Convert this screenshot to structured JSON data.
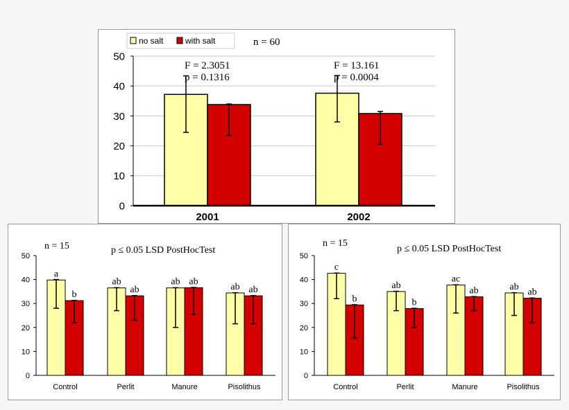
{
  "colors": {
    "no_salt": "#ffffa8",
    "with_salt": "#d40000",
    "axis": "#000000",
    "panel_bg": "#ffffff",
    "page_bg": "#f6f6f6"
  },
  "legend": {
    "no_salt": "no salt",
    "with_salt": "with salt"
  },
  "chart_data": [
    {
      "type": "bar",
      "title": "",
      "n_label": "n = 60",
      "categories": [
        "2001",
        "2002"
      ],
      "series": [
        {
          "name": "no salt",
          "values": [
            37.2,
            37.6
          ],
          "err_low": [
            24.5,
            28.0
          ],
          "err_high": [
            43.4,
            43.5
          ]
        },
        {
          "name": "with salt",
          "values": [
            33.8,
            30.8
          ],
          "err_low": [
            23.5,
            20.5
          ],
          "err_high": [
            34.0,
            31.5
          ]
        }
      ],
      "stats": [
        {
          "f": "F = 2.3051",
          "p": "p = 0.1316"
        },
        {
          "f": "F = 13.161",
          "p": "p = 0.0004"
        }
      ],
      "yticks": [
        "0",
        "10",
        "20",
        "30",
        "40",
        "50"
      ],
      "ylim": [
        0,
        50
      ],
      "legend_position": "top-left"
    },
    {
      "type": "bar",
      "n_label": "n = 15",
      "test_label": "p ≤ 0.05 LSD PostHocTest",
      "categories": [
        "Control",
        "Perlit",
        "Manure",
        "Pisolithus"
      ],
      "series": [
        {
          "name": "no salt",
          "values": [
            39.8,
            36.5,
            36.5,
            34.4
          ],
          "err_low": [
            28.0,
            27.0,
            20.0,
            21.5
          ],
          "err_high": [
            40.0,
            36.6,
            36.6,
            34.5
          ],
          "letters": [
            "a",
            "ab",
            "ab",
            "ab"
          ]
        },
        {
          "name": "with salt",
          "values": [
            31.2,
            33.2,
            36.6,
            33.2
          ],
          "err_low": [
            22.0,
            23.0,
            25.5,
            21.5
          ],
          "err_high": [
            31.3,
            33.3,
            36.7,
            33.3
          ],
          "letters": [
            "b",
            "ab",
            "ab",
            "ab"
          ]
        }
      ],
      "yticks": [
        "0",
        "10",
        "20",
        "30",
        "40",
        "50"
      ],
      "ylim": [
        0,
        50
      ]
    },
    {
      "type": "bar",
      "n_label": "n = 15",
      "test_label": "p ≤ 0.05 LSD PostHocTest",
      "categories": [
        "Control",
        "Perlit",
        "Manure",
        "Pisolithus"
      ],
      "series": [
        {
          "name": "no salt",
          "values": [
            42.6,
            35.0,
            37.7,
            34.4
          ],
          "err_low": [
            32.0,
            27.0,
            26.0,
            25.0
          ],
          "err_high": [
            42.7,
            35.1,
            37.8,
            34.5
          ],
          "letters": [
            "c",
            "ab",
            "ac",
            "ab"
          ]
        },
        {
          "name": "with salt",
          "values": [
            29.4,
            27.9,
            32.8,
            32.2
          ],
          "err_low": [
            15.5,
            20.0,
            27.0,
            22.0
          ],
          "err_high": [
            29.5,
            28.0,
            32.9,
            32.3
          ],
          "letters": [
            "b",
            "b",
            "ab",
            "ab"
          ]
        }
      ],
      "yticks": [
        "0",
        "10",
        "20",
        "30",
        "40",
        "50"
      ],
      "ylim": [
        0,
        50
      ]
    }
  ]
}
